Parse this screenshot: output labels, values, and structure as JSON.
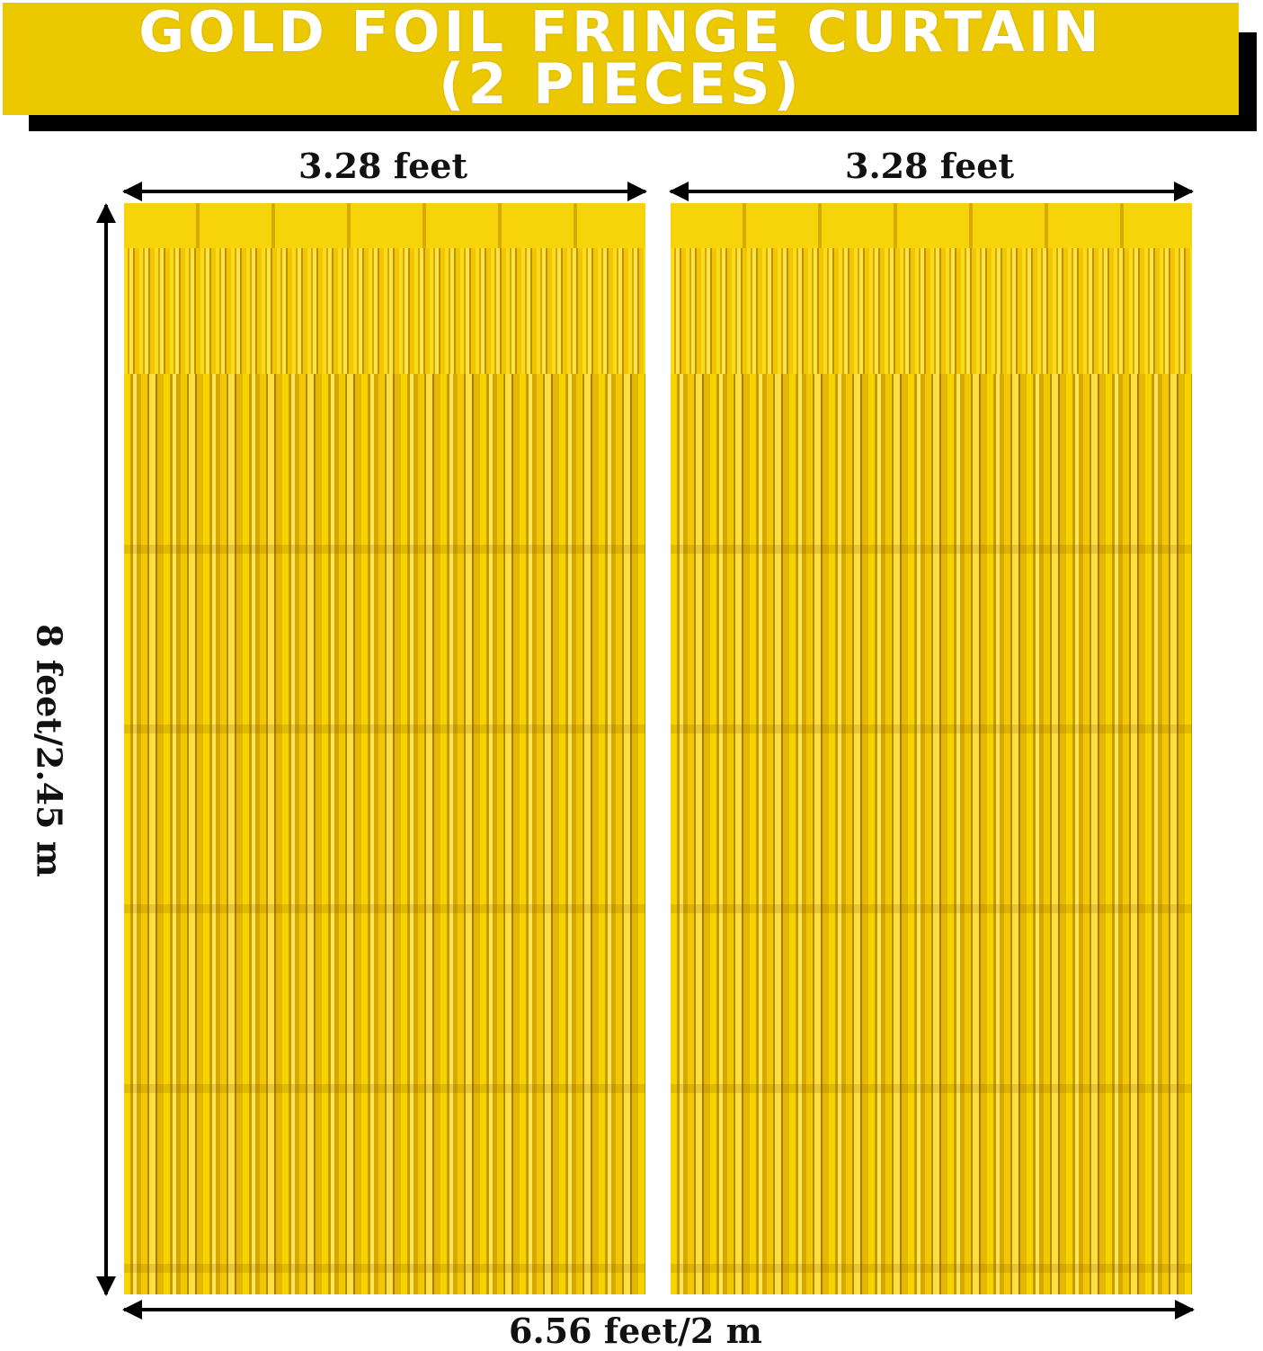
{
  "banner": {
    "line1": "GOLD FOIL FRINGE CURTAIN",
    "line2": "(2 PIECES)",
    "color": "#ebc800"
  },
  "dimensions": {
    "left_width": "3.28 feet",
    "right_width": "3.28 feet",
    "height": "8 feet/2.45 m",
    "total_width": "6.56 feet/2 m"
  },
  "curtain_color": "#f2c800"
}
